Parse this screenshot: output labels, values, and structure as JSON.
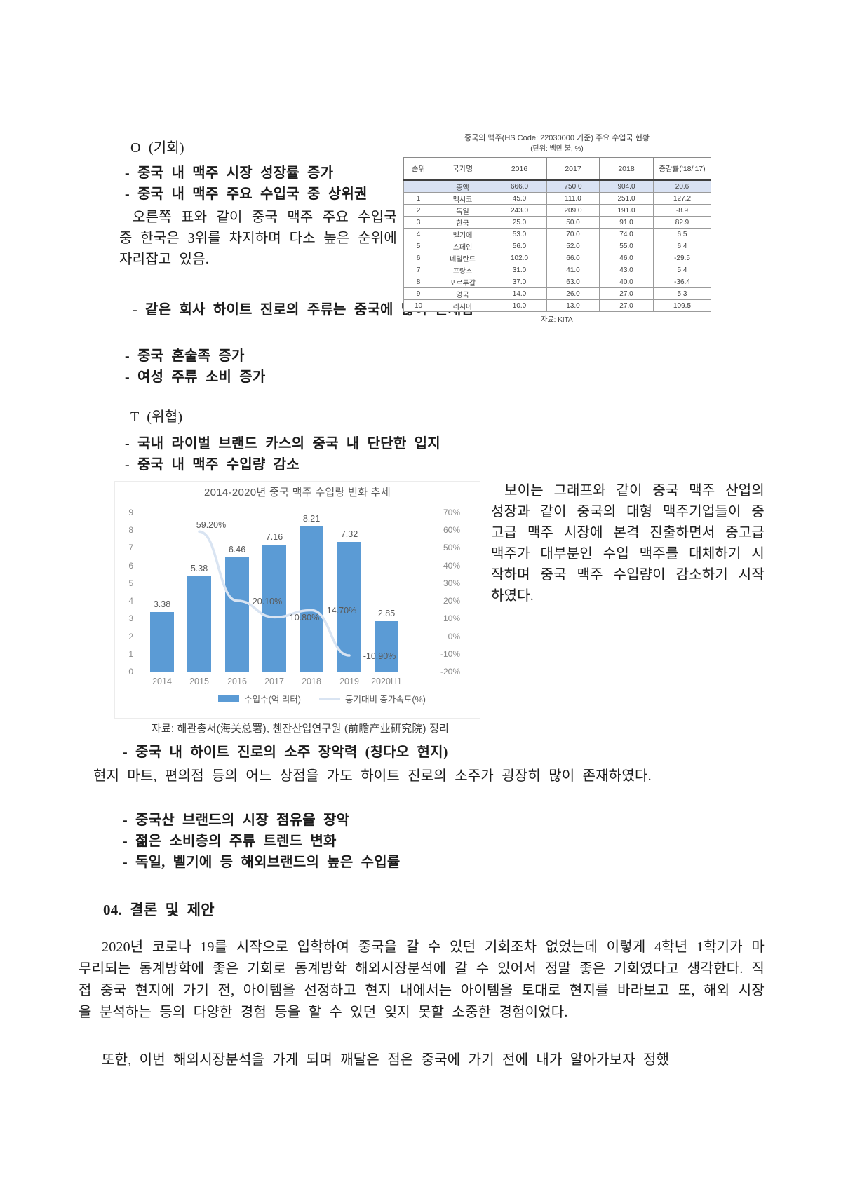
{
  "opportunity": {
    "heading": "O (기회)",
    "bullet1": "- 중국 내 맥주 시장 성장률 증가",
    "bullet2": "- 중국 내 맥주 주요 수입국 중 상위권",
    "paragraph": "오른쪽 표와 같이 중국 맥주 주요 수입국 중 한국은 3위를 차지하며 다소 높은 순위에 자리잡고 있음.",
    "bullet3": "- 같은 회사 하이트 진로의 주류는 중국에 많이 존재함",
    "bullet4": "- 중국 혼술족 증가",
    "bullet5": "- 여성 주류 소비 증가"
  },
  "import_table": {
    "title": "중국의 맥주(HS Code: 22030000 기준) 주요 수입국 현황",
    "unit": "(단위: 백만 불, %)",
    "headers": [
      "순위",
      "국가명",
      "2016",
      "2017",
      "2018",
      "증감률('18/'17)"
    ],
    "total_row": [
      "",
      "총액",
      "666.0",
      "750.0",
      "904.0",
      "20.6"
    ],
    "rows": [
      [
        "1",
        "멕시코",
        "45.0",
        "111.0",
        "251.0",
        "127.2"
      ],
      [
        "2",
        "독일",
        "243.0",
        "209.0",
        "191.0",
        "-8.9"
      ],
      [
        "3",
        "한국",
        "25.0",
        "50.0",
        "91.0",
        "82.9"
      ],
      [
        "4",
        "벨기에",
        "53.0",
        "70.0",
        "74.0",
        "6.5"
      ],
      [
        "5",
        "스페인",
        "56.0",
        "52.0",
        "55.0",
        "6.4"
      ],
      [
        "6",
        "네덜란드",
        "102.0",
        "66.0",
        "46.0",
        "-29.5"
      ],
      [
        "7",
        "프랑스",
        "31.0",
        "41.0",
        "43.0",
        "5.4"
      ],
      [
        "8",
        "포르투갈",
        "37.0",
        "63.0",
        "40.0",
        "-36.4"
      ],
      [
        "9",
        "영국",
        "14.0",
        "26.0",
        "27.0",
        "5.3"
      ],
      [
        "10",
        "러시아",
        "10.0",
        "13.0",
        "27.0",
        "109.5"
      ]
    ],
    "source": "자료: KITA"
  },
  "threat": {
    "heading": "T (위협)",
    "bullet1": "- 국내 라이벌 브랜드 카스의 중국 내 단단한 입지",
    "bullet2": "- 중국 내 맥주 수입량 감소",
    "paragraph": "보이는 그래프와 같이 중국 맥주 산업의 성장과 같이 중국의 대형 맥주기업들이 중고급 맥주 시장에 본격 진출하면서 중고급 맥주가 대부분인 수입 맥주를 대체하기 시작하며 중국 맥주 수입량이 감소하기 시작하였다.",
    "bullet3": "- 중국 내 하이트 진로의 소주 장악력 (칭다오 현지)",
    "paragraph2": "현지 마트, 편의점 등의 어느 상점을 가도 하이트 진로의 소주가 굉장히 많이 존재하였다.",
    "bullet4": "- 중국산 브랜드의 시장 점유율 장악",
    "bullet5": "- 젊은 소비층의 주류 트렌드 변화",
    "bullet6": "- 독일, 벨기에 등 해외브랜드의 높은 수입률"
  },
  "chart_data": {
    "type": "bar",
    "title": "2014-2020년 중국 맥주 수입량 변화 추세",
    "categories": [
      "2014",
      "2015",
      "2016",
      "2017",
      "2018",
      "2019",
      "2020H1"
    ],
    "series": [
      {
        "name": "수입수(억 리터)",
        "type": "bar",
        "values": [
          3.38,
          5.38,
          6.46,
          7.16,
          8.21,
          7.32,
          2.85
        ]
      },
      {
        "name": "동기대비 증가속도(%)",
        "type": "line",
        "values": [
          null,
          59.2,
          20.1,
          10.8,
          14.7,
          -10.9,
          null
        ],
        "labels": [
          "",
          "59.20%",
          "20.10%",
          "10.80%",
          "14.70%",
          "-10.90%",
          ""
        ]
      }
    ],
    "left_axis": {
      "min": 0,
      "max": 9,
      "ticks": [
        "9",
        "8",
        "7",
        "6",
        "5",
        "4",
        "3",
        "2",
        "1",
        "0"
      ]
    },
    "right_axis": {
      "min": -20,
      "max": 70,
      "ticks": [
        "70%",
        "60%",
        "50%",
        "40%",
        "30%",
        "20%",
        "10%",
        "0%",
        "-10%",
        "-20%"
      ]
    },
    "colors": {
      "bar": "#5b9bd5",
      "line": "#d9e4f2"
    },
    "legend_position": "bottom",
    "grid": false,
    "source": "자료: 해관총서(海关总署), 첸잔산업연구원 (前瞻产业研究院) 정리"
  },
  "conclusion": {
    "heading": "04. 결론 및 제안",
    "paragraph1": "2020년 코로나 19를 시작으로 입학하여 중국을 갈 수 있던 기회조차 없었는데 이렇게 4학년 1학기가 마무리되는 동계방학에 좋은 기회로 동계방학 해외시장분석에 갈 수 있어서 정말 좋은 기회였다고 생각한다. 직접 중국 현지에 가기 전, 아이템을 선정하고 현지 내에서는 아이템을 토대로 현지를 바라보고 또, 해외 시장을 분석하는 등의 다양한 경험 등을 할 수 있던 잊지 못할 소중한 경험이었다.",
    "paragraph2": "또한, 이번 해외시장분석을 가게 되며 깨달은 점은 중국에 가기 전에 내가 알아가보자 정했"
  }
}
